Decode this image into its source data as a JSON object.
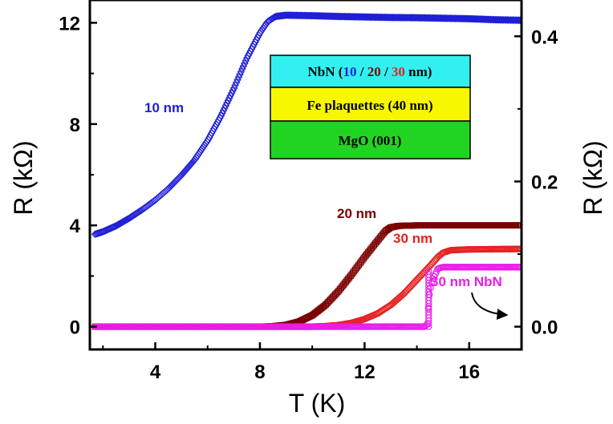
{
  "chart_data": {
    "type": "scatter",
    "xlabel": "T (K)",
    "ylabel_left": "R (kΩ)",
    "ylabel_right": "R (kΩ)",
    "xlim": [
      1.5,
      18
    ],
    "ylim_left": [
      -0.9,
      12.9
    ],
    "ylim_right": [
      -0.0314,
      0.45
    ],
    "x_ticks": [
      4,
      8,
      12,
      16
    ],
    "y_ticks_left": [
      0,
      4,
      8,
      12
    ],
    "y_ticks_right": [
      0.0,
      0.2,
      0.4
    ],
    "x_tick_labels": [
      "4",
      "8",
      "12",
      "16"
    ],
    "y_tick_labels_left": [
      "0",
      "4",
      "8",
      "12"
    ],
    "y_tick_labels_right": [
      "0.0",
      "0.2",
      "0.4"
    ],
    "grid": false,
    "series": [
      {
        "label": "10 nm",
        "color": "#1f1fd6",
        "marker": "diamond",
        "axis": "left",
        "points": [
          [
            1.7,
            3.65
          ],
          [
            2,
            3.75
          ],
          [
            2.5,
            3.98
          ],
          [
            3,
            4.28
          ],
          [
            3.5,
            4.62
          ],
          [
            4,
            5.0
          ],
          [
            4.5,
            5.45
          ],
          [
            5,
            5.98
          ],
          [
            5.5,
            6.58
          ],
          [
            6,
            7.35
          ],
          [
            6.5,
            8.3
          ],
          [
            7,
            9.4
          ],
          [
            7.5,
            10.6
          ],
          [
            8,
            11.6
          ],
          [
            8.3,
            12.05
          ],
          [
            8.6,
            12.25
          ],
          [
            9,
            12.3
          ],
          [
            10,
            12.28
          ],
          [
            11,
            12.25
          ],
          [
            12,
            12.23
          ],
          [
            13,
            12.21
          ],
          [
            14,
            12.2
          ],
          [
            15,
            12.18
          ],
          [
            16,
            12.16
          ],
          [
            17,
            12.12
          ],
          [
            18,
            12.1
          ]
        ]
      },
      {
        "label": "20 nm",
        "color": "#7a0000",
        "marker": "square",
        "axis": "left",
        "points": [
          [
            1.7,
            0
          ],
          [
            4,
            0
          ],
          [
            6,
            0
          ],
          [
            8,
            0
          ],
          [
            8.5,
            0.02
          ],
          [
            9,
            0.07
          ],
          [
            9.5,
            0.2
          ],
          [
            10,
            0.45
          ],
          [
            10.5,
            0.85
          ],
          [
            11,
            1.4
          ],
          [
            11.5,
            2.05
          ],
          [
            12,
            2.75
          ],
          [
            12.5,
            3.4
          ],
          [
            12.8,
            3.78
          ],
          [
            13,
            3.92
          ],
          [
            13.3,
            3.98
          ],
          [
            14,
            4.0
          ],
          [
            15,
            4.0
          ],
          [
            16,
            4.0
          ],
          [
            17,
            4.0
          ],
          [
            18,
            4.0
          ]
        ]
      },
      {
        "label": "30 nm",
        "color": "#e62020",
        "marker": "circle",
        "axis": "left",
        "points": [
          [
            1.7,
            0
          ],
          [
            4,
            0
          ],
          [
            6,
            0
          ],
          [
            8,
            0
          ],
          [
            10,
            0
          ],
          [
            10.5,
            0.02
          ],
          [
            11,
            0.06
          ],
          [
            11.5,
            0.15
          ],
          [
            12,
            0.3
          ],
          [
            12.5,
            0.52
          ],
          [
            13,
            0.85
          ],
          [
            13.5,
            1.3
          ],
          [
            14,
            1.85
          ],
          [
            14.5,
            2.4
          ],
          [
            14.8,
            2.75
          ],
          [
            15,
            2.92
          ],
          [
            15.3,
            3.02
          ],
          [
            16,
            3.05
          ],
          [
            17,
            3.06
          ],
          [
            18,
            3.07
          ]
        ]
      },
      {
        "label": "30 nm NbN",
        "color": "#e81ee8",
        "marker": "circle",
        "axis": "right",
        "points": [
          [
            1.7,
            0
          ],
          [
            4,
            0
          ],
          [
            6,
            0
          ],
          [
            8,
            0
          ],
          [
            10,
            0
          ],
          [
            12,
            0
          ],
          [
            13,
            0
          ],
          [
            14,
            0
          ],
          [
            14.3,
            0.0
          ],
          [
            14.4,
            0.004
          ],
          [
            14.45,
            0.035
          ],
          [
            14.5,
            0.05
          ],
          [
            14.6,
            0.065
          ],
          [
            14.7,
            0.072
          ],
          [
            14.8,
            0.08
          ],
          [
            15,
            0.082
          ],
          [
            16,
            0.082
          ],
          [
            17,
            0.082
          ],
          [
            18,
            0.082
          ]
        ]
      }
    ],
    "annotations": {
      "label_10nm": "10 nm",
      "label_20nm": "20 nm",
      "label_30nm": "30 nm",
      "label_30nm_nbn": "30 nm NbN"
    },
    "layers": [
      {
        "parts": [
          {
            "text": "NbN (",
            "color": "#000000"
          },
          {
            "text": "10",
            "color": "#1f1fd6"
          },
          {
            "text": " / ",
            "color": "#000000"
          },
          {
            "text": "20",
            "color": "#7a0000"
          },
          {
            "text": " / ",
            "color": "#000000"
          },
          {
            "text": "30",
            "color": "#e62020"
          },
          {
            "text": " nm)",
            "color": "#000000"
          }
        ],
        "fill": "#33f0f0"
      },
      {
        "text": "Fe plaquettes (40 nm)",
        "fill": "#f7f700"
      },
      {
        "text": "MgO (001)",
        "fill": "#22d422"
      }
    ]
  }
}
